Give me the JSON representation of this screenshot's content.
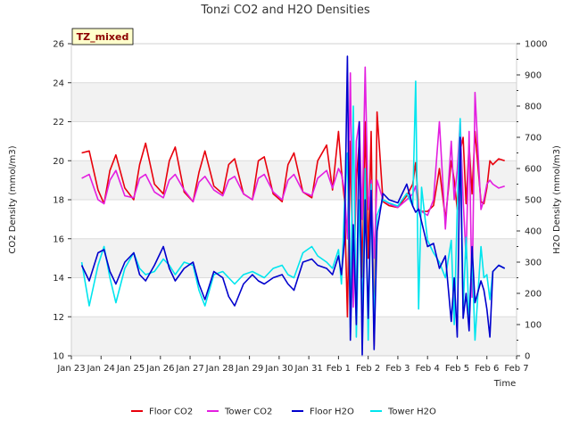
{
  "chart_data": {
    "type": "line",
    "title": "Tonzi CO2 and H2O Densities",
    "badge": "TZ_mixed",
    "xlabel": "Time",
    "ylabel_left": "CO2 Density (mmol/m3)",
    "ylabel_right": "H2O Density (mmol/m3)",
    "ylim_left": [
      10,
      26
    ],
    "ylim_right": [
      0,
      1000
    ],
    "xlim_days": [
      0,
      15
    ],
    "x_tick_labels": [
      "Jan 23",
      "Jan 24",
      "Jan 25",
      "Jan 26",
      "Jan 27",
      "Jan 28",
      "Jan 29",
      "Jan 30",
      "Jan 31",
      "Feb 1",
      "Feb 2",
      "Feb 3",
      "Feb 4",
      "Feb 5",
      "Feb 6",
      "Feb 7"
    ],
    "y_left_ticks": [
      10,
      12,
      14,
      16,
      18,
      20,
      22,
      24,
      26
    ],
    "y_right_ticks": [
      0,
      100,
      200,
      300,
      400,
      500,
      600,
      700,
      800,
      900,
      1000
    ],
    "grid": true,
    "legend_position": "bottom-center",
    "series": [
      {
        "name": "Floor CO2",
        "axis": "left",
        "color": "#e8000b",
        "x": [
          0.35,
          0.6,
          0.9,
          1.1,
          1.3,
          1.5,
          1.8,
          2.1,
          2.3,
          2.5,
          2.8,
          3.1,
          3.3,
          3.5,
          3.8,
          4.1,
          4.3,
          4.5,
          4.8,
          5.1,
          5.3,
          5.5,
          5.8,
          6.1,
          6.3,
          6.5,
          6.8,
          7.1,
          7.3,
          7.5,
          7.8,
          8.1,
          8.3,
          8.6,
          8.8,
          9.0,
          9.1,
          9.2,
          9.3,
          9.4,
          9.5,
          9.6,
          9.7,
          9.8,
          9.9,
          10.0,
          10.1,
          10.2,
          10.3,
          10.5,
          10.7,
          11.0,
          11.3,
          11.5,
          11.6,
          11.7,
          11.8,
          12.0,
          12.2,
          12.4,
          12.6,
          12.8,
          12.9,
          13.0,
          13.1,
          13.2,
          13.3,
          13.4,
          13.5,
          13.6,
          13.8,
          13.9,
          14.0,
          14.1,
          14.2,
          14.4,
          14.6
        ],
        "values": [
          20.4,
          20.5,
          18.5,
          17.8,
          19.5,
          20.3,
          18.6,
          18.0,
          19.8,
          20.9,
          18.8,
          18.3,
          20.0,
          20.7,
          18.4,
          17.9,
          19.4,
          20.5,
          18.7,
          18.3,
          19.8,
          20.1,
          18.3,
          18.0,
          20.0,
          20.2,
          18.3,
          17.9,
          19.8,
          20.4,
          18.4,
          18.1,
          20.0,
          20.8,
          18.5,
          21.5,
          19.5,
          18.0,
          12.0,
          21.0,
          13.0,
          19.0,
          21.0,
          14.0,
          22.0,
          15.0,
          21.5,
          10.5,
          22.5,
          17.9,
          17.7,
          17.6,
          18.2,
          18.8,
          19.9,
          17.5,
          17.4,
          17.4,
          17.7,
          19.6,
          17.0,
          20.0,
          19.0,
          17.5,
          20.5,
          21.2,
          17.8,
          20.8,
          18.3,
          21.5,
          17.9,
          17.8,
          18.6,
          20.0,
          19.8,
          20.1,
          20.0
        ]
      },
      {
        "name": "Tower CO2",
        "axis": "left",
        "color": "#e31ee0",
        "x": [
          0.35,
          0.6,
          0.9,
          1.1,
          1.3,
          1.5,
          1.8,
          2.1,
          2.3,
          2.5,
          2.8,
          3.1,
          3.3,
          3.5,
          3.8,
          4.1,
          4.3,
          4.5,
          4.8,
          5.1,
          5.3,
          5.5,
          5.8,
          6.1,
          6.3,
          6.5,
          6.8,
          7.1,
          7.3,
          7.5,
          7.8,
          8.1,
          8.3,
          8.6,
          8.8,
          9.0,
          9.1,
          9.2,
          9.3,
          9.4,
          9.5,
          9.6,
          9.7,
          9.8,
          9.9,
          10.0,
          10.1,
          10.2,
          10.3,
          10.5,
          10.7,
          11.0,
          11.3,
          11.5,
          11.6,
          11.7,
          11.8,
          12.0,
          12.2,
          12.4,
          12.6,
          12.8,
          12.9,
          13.0,
          13.1,
          13.2,
          13.3,
          13.4,
          13.5,
          13.6,
          13.8,
          13.9,
          14.0,
          14.1,
          14.2,
          14.4,
          14.6
        ],
        "values": [
          19.1,
          19.3,
          18.0,
          17.8,
          19.0,
          19.5,
          18.2,
          18.1,
          19.1,
          19.3,
          18.4,
          18.1,
          19.0,
          19.3,
          18.5,
          17.9,
          18.9,
          19.2,
          18.5,
          18.2,
          19.0,
          19.2,
          18.3,
          18.0,
          19.1,
          19.3,
          18.4,
          18.0,
          19.0,
          19.3,
          18.4,
          18.2,
          19.1,
          19.5,
          18.6,
          19.6,
          19.3,
          18.5,
          16.0,
          24.5,
          12.5,
          21.0,
          22.0,
          17.0,
          24.8,
          17.5,
          19.0,
          15.0,
          19.0,
          18.0,
          17.8,
          17.6,
          18.0,
          18.3,
          18.7,
          17.5,
          17.4,
          17.2,
          18.0,
          22.0,
          16.5,
          21.0,
          18.0,
          19.5,
          22.0,
          18.0,
          15.0,
          21.5,
          13.0,
          23.5,
          17.5,
          18.0,
          18.8,
          19.0,
          18.8,
          18.6,
          18.7
        ]
      },
      {
        "name": "Floor H2O",
        "axis": "right",
        "color": "#0000cd",
        "x": [
          0.35,
          0.6,
          0.9,
          1.1,
          1.3,
          1.5,
          1.8,
          2.1,
          2.3,
          2.5,
          2.8,
          3.1,
          3.3,
          3.5,
          3.8,
          4.1,
          4.3,
          4.5,
          4.8,
          5.1,
          5.3,
          5.5,
          5.8,
          6.1,
          6.3,
          6.5,
          6.8,
          7.1,
          7.3,
          7.5,
          7.8,
          8.1,
          8.3,
          8.6,
          8.8,
          9.0,
          9.1,
          9.2,
          9.3,
          9.4,
          9.5,
          9.6,
          9.7,
          9.8,
          9.9,
          10.0,
          10.1,
          10.2,
          10.3,
          10.5,
          10.7,
          11.0,
          11.3,
          11.5,
          11.6,
          11.7,
          11.8,
          12.0,
          12.2,
          12.4,
          12.6,
          12.8,
          12.9,
          13.0,
          13.1,
          13.2,
          13.3,
          13.4,
          13.5,
          13.6,
          13.8,
          13.9,
          14.0,
          14.1,
          14.2,
          14.4,
          14.6
        ],
        "values": [
          290,
          240,
          330,
          340,
          270,
          230,
          300,
          330,
          260,
          240,
          290,
          350,
          280,
          240,
          280,
          300,
          230,
          180,
          270,
          250,
          190,
          160,
          230,
          260,
          240,
          230,
          250,
          260,
          230,
          210,
          300,
          310,
          290,
          280,
          260,
          320,
          260,
          370,
          960,
          50,
          420,
          100,
          750,
          0,
          500,
          120,
          530,
          20,
          400,
          520,
          500,
          490,
          550,
          480,
          460,
          470,
          430,
          350,
          360,
          280,
          320,
          110,
          250,
          60,
          700,
          120,
          200,
          80,
          350,
          170,
          240,
          210,
          150,
          60,
          270,
          290,
          280
        ]
      },
      {
        "name": "Tower H2O",
        "axis": "right",
        "color": "#00e5ee",
        "x": [
          0.35,
          0.6,
          0.9,
          1.1,
          1.3,
          1.5,
          1.8,
          2.1,
          2.3,
          2.5,
          2.8,
          3.1,
          3.3,
          3.5,
          3.8,
          4.1,
          4.3,
          4.5,
          4.8,
          5.1,
          5.3,
          5.5,
          5.8,
          6.1,
          6.3,
          6.5,
          6.8,
          7.1,
          7.3,
          7.5,
          7.8,
          8.1,
          8.3,
          8.6,
          8.8,
          9.0,
          9.1,
          9.2,
          9.3,
          9.4,
          9.5,
          9.6,
          9.7,
          9.8,
          9.9,
          10.0,
          10.1,
          10.2,
          10.3,
          10.5,
          10.7,
          11.0,
          11.3,
          11.5,
          11.6,
          11.7,
          11.8,
          12.0,
          12.2,
          12.4,
          12.6,
          12.8,
          12.9,
          13.0,
          13.1,
          13.2,
          13.3,
          13.4,
          13.5,
          13.6,
          13.8,
          13.9,
          14.0,
          14.1,
          14.2,
          14.4,
          14.6
        ],
        "values": [
          300,
          160,
          290,
          350,
          250,
          170,
          280,
          330,
          280,
          260,
          270,
          310,
          290,
          260,
          300,
          290,
          210,
          160,
          260,
          270,
          250,
          230,
          260,
          270,
          260,
          250,
          280,
          290,
          260,
          250,
          330,
          350,
          320,
          300,
          280,
          340,
          230,
          480,
          650,
          90,
          800,
          60,
          500,
          110,
          600,
          50,
          550,
          90,
          450,
          500,
          490,
          480,
          520,
          480,
          880,
          150,
          540,
          370,
          330,
          300,
          250,
          370,
          100,
          470,
          760,
          150,
          380,
          110,
          320,
          50,
          350,
          250,
          260,
          180,
          270,
          290,
          280
        ]
      }
    ]
  }
}
